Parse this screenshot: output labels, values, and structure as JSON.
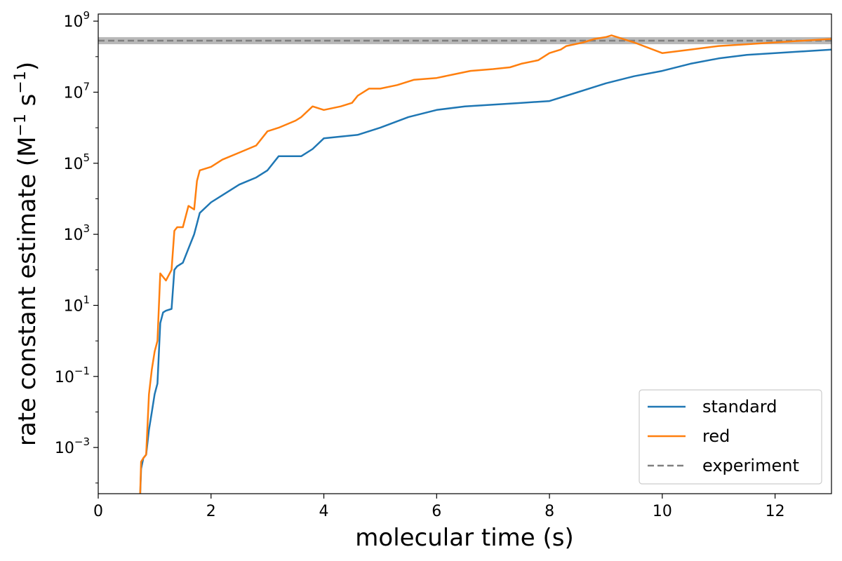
{
  "chart_data": {
    "type": "line",
    "xlabel": "molecular time (s)",
    "ylabel": "rate constant estimate (M",
    "ylabel_sup1": "−1",
    "ylabel_mid": " s",
    "ylabel_sup2": "−1",
    "ylabel_end": ")",
    "xlim": [
      0,
      13
    ],
    "ylim_log10": [
      -4.3,
      9.2
    ],
    "yscale": "log",
    "grid": false,
    "legend_placement": "bottom-right",
    "x_ticks": [
      0,
      2,
      4,
      6,
      8,
      10,
      12
    ],
    "x_tick_labels": [
      "0",
      "2",
      "4",
      "6",
      "8",
      "10",
      "12"
    ],
    "y_ticks_log10": [
      -3,
      -1,
      1,
      3,
      5,
      7,
      9
    ],
    "y_tick_bases": [
      "10",
      "10",
      "10",
      "10",
      "10",
      "10",
      "10"
    ],
    "y_tick_exponents": [
      "−3",
      "−1",
      "1",
      "3",
      "5",
      "7",
      "9"
    ],
    "series": [
      {
        "name": "standard",
        "color": "#1f77b4",
        "x": [
          0.74,
          0.76,
          0.8,
          0.85,
          0.9,
          0.95,
          1.0,
          1.05,
          1.1,
          1.15,
          1.2,
          1.3,
          1.35,
          1.4,
          1.5,
          1.6,
          1.7,
          1.75,
          1.8,
          2.0,
          2.2,
          2.5,
          2.8,
          3.0,
          3.2,
          3.4,
          3.6,
          3.8,
          4.0,
          4.3,
          4.6,
          5.0,
          5.5,
          6.0,
          6.5,
          7.0,
          7.5,
          8.0,
          8.5,
          9.0,
          9.5,
          10.0,
          10.5,
          11.0,
          11.5,
          12.0,
          12.5,
          13.0
        ],
        "log10_y": [
          -4.5,
          -3.6,
          -3.3,
          -3.2,
          -2.5,
          -2.0,
          -1.5,
          -1.2,
          0.5,
          0.8,
          0.85,
          0.9,
          2.0,
          2.1,
          2.2,
          2.6,
          3.0,
          3.3,
          3.6,
          3.9,
          4.1,
          4.4,
          4.6,
          4.8,
          5.2,
          5.2,
          5.2,
          5.4,
          5.7,
          5.75,
          5.8,
          6.0,
          6.3,
          6.5,
          6.6,
          6.65,
          6.7,
          6.75,
          7.0,
          7.25,
          7.45,
          7.6,
          7.8,
          7.95,
          8.05,
          8.1,
          8.15,
          8.2
        ]
      },
      {
        "name": "red",
        "color": "#ff7f0e",
        "x": [
          0.74,
          0.76,
          0.8,
          0.85,
          0.9,
          0.95,
          1.0,
          1.05,
          1.1,
          1.15,
          1.2,
          1.3,
          1.35,
          1.4,
          1.5,
          1.55,
          1.6,
          1.7,
          1.75,
          1.8,
          2.0,
          2.2,
          2.5,
          2.8,
          3.0,
          3.2,
          3.5,
          3.6,
          3.8,
          4.0,
          4.3,
          4.5,
          4.6,
          4.8,
          5.0,
          5.3,
          5.6,
          6.0,
          6.3,
          6.6,
          7.0,
          7.3,
          7.5,
          7.8,
          8.0,
          8.2,
          8.3,
          8.6,
          8.8,
          9.0,
          9.1,
          9.5,
          10.0,
          10.5,
          11.0,
          11.5,
          12.0,
          12.5,
          13.0
        ],
        "log10_y": [
          -4.5,
          -3.4,
          -3.3,
          -3.2,
          -1.5,
          -0.8,
          -0.3,
          0.0,
          1.9,
          1.8,
          1.7,
          2.0,
          3.1,
          3.2,
          3.2,
          3.5,
          3.8,
          3.7,
          4.5,
          4.8,
          4.9,
          5.1,
          5.3,
          5.5,
          5.9,
          6.0,
          6.2,
          6.3,
          6.6,
          6.5,
          6.6,
          6.7,
          6.9,
          7.1,
          7.1,
          7.2,
          7.35,
          7.4,
          7.5,
          7.6,
          7.65,
          7.7,
          7.8,
          7.9,
          8.1,
          8.2,
          8.3,
          8.4,
          8.5,
          8.55,
          8.6,
          8.4,
          8.1,
          8.2,
          8.3,
          8.35,
          8.4,
          8.45,
          8.5
        ]
      }
    ],
    "reference": {
      "name": "experiment",
      "color": "#808080",
      "log10_value": 8.45,
      "band_log10": [
        8.35,
        8.55
      ],
      "style": "dashed"
    }
  }
}
